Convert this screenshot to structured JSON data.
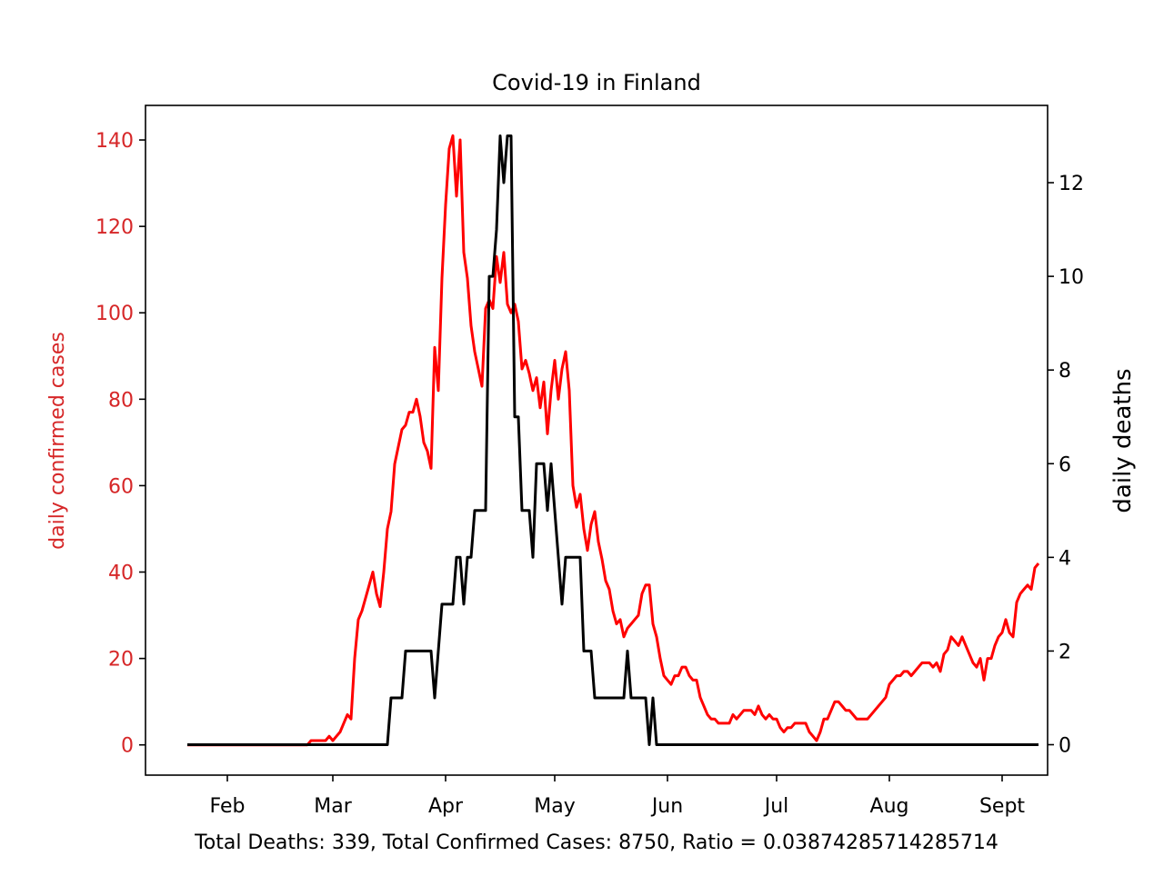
{
  "chart_data": {
    "type": "line",
    "title": "Covid-19 in Finland",
    "xlabel": "Total Deaths: 339,  Total Confirmed Cases: 8750,   Ratio = 0.03874285714285714",
    "ylabel_left": "daily confirmed cases",
    "ylabel_right": "daily deaths",
    "colors": {
      "cases": "#ff0000",
      "deaths": "#000000",
      "left_axis_text": "#d62728"
    },
    "grid": false,
    "x_day_range": [
      -12.5,
      235.5
    ],
    "ylim_left": [
      -7,
      148
    ],
    "ylim_right": [
      -0.65,
      13.65
    ],
    "x_ticks": [
      {
        "day": 10,
        "label": "Feb"
      },
      {
        "day": 39,
        "label": "Mar"
      },
      {
        "day": 70,
        "label": "Apr"
      },
      {
        "day": 100,
        "label": "May"
      },
      {
        "day": 131,
        "label": "Jun"
      },
      {
        "day": 161,
        "label": "Jul"
      },
      {
        "day": 192,
        "label": "Aug"
      },
      {
        "day": 223,
        "label": "Sept"
      }
    ],
    "y_ticks_left": [
      0,
      20,
      40,
      60,
      80,
      100,
      120,
      140
    ],
    "y_ticks_right": [
      0,
      2,
      4,
      6,
      8,
      10,
      12
    ],
    "series": [
      {
        "key": "cases",
        "axis": "left",
        "points": [
          [
            -1,
            0
          ],
          [
            32,
            0
          ],
          [
            33,
            1
          ],
          [
            37,
            1
          ],
          [
            38,
            2
          ],
          [
            39,
            1
          ],
          [
            40,
            2
          ],
          [
            41,
            3
          ],
          [
            42,
            5
          ],
          [
            43,
            7
          ],
          [
            44,
            6
          ],
          [
            45,
            20
          ],
          [
            46,
            29
          ],
          [
            47,
            31
          ],
          [
            48,
            34
          ],
          [
            49,
            37
          ],
          [
            50,
            40
          ],
          [
            51,
            35
          ],
          [
            52,
            32
          ],
          [
            53,
            40
          ],
          [
            54,
            50
          ],
          [
            55,
            54
          ],
          [
            56,
            65
          ],
          [
            57,
            69
          ],
          [
            58,
            73
          ],
          [
            59,
            74
          ],
          [
            60,
            77
          ],
          [
            61,
            77
          ],
          [
            62,
            80
          ],
          [
            63,
            76
          ],
          [
            64,
            70
          ],
          [
            65,
            68
          ],
          [
            66,
            64
          ],
          [
            67,
            92
          ],
          [
            68,
            82
          ],
          [
            69,
            108
          ],
          [
            70,
            125
          ],
          [
            71,
            138
          ],
          [
            72,
            141
          ],
          [
            73,
            127
          ],
          [
            74,
            140
          ],
          [
            75,
            114
          ],
          [
            76,
            108
          ],
          [
            77,
            97
          ],
          [
            78,
            91
          ],
          [
            79,
            87
          ],
          [
            80,
            83
          ],
          [
            81,
            101
          ],
          [
            82,
            103
          ],
          [
            83,
            101
          ],
          [
            84,
            113
          ],
          [
            85,
            107
          ],
          [
            86,
            114
          ],
          [
            87,
            102
          ],
          [
            88,
            100
          ],
          [
            89,
            102
          ],
          [
            90,
            98
          ],
          [
            91,
            87
          ],
          [
            92,
            89
          ],
          [
            93,
            86
          ],
          [
            94,
            82
          ],
          [
            95,
            85
          ],
          [
            96,
            78
          ],
          [
            97,
            84
          ],
          [
            98,
            72
          ],
          [
            99,
            82
          ],
          [
            100,
            89
          ],
          [
            101,
            80
          ],
          [
            102,
            87
          ],
          [
            103,
            91
          ],
          [
            104,
            82
          ],
          [
            105,
            60
          ],
          [
            106,
            55
          ],
          [
            107,
            58
          ],
          [
            108,
            50
          ],
          [
            109,
            45
          ],
          [
            110,
            51
          ],
          [
            111,
            54
          ],
          [
            112,
            47
          ],
          [
            113,
            43
          ],
          [
            114,
            38
          ],
          [
            115,
            36
          ],
          [
            116,
            31
          ],
          [
            117,
            28
          ],
          [
            118,
            29
          ],
          [
            119,
            25
          ],
          [
            120,
            27
          ],
          [
            121,
            28
          ],
          [
            122,
            29
          ],
          [
            123,
            30
          ],
          [
            124,
            35
          ],
          [
            125,
            37
          ],
          [
            126,
            37
          ],
          [
            127,
            28
          ],
          [
            128,
            25
          ],
          [
            129,
            20
          ],
          [
            130,
            16
          ],
          [
            131,
            15
          ],
          [
            132,
            14
          ],
          [
            133,
            16
          ],
          [
            134,
            16
          ],
          [
            135,
            18
          ],
          [
            136,
            18
          ],
          [
            137,
            16
          ],
          [
            138,
            15
          ],
          [
            139,
            15
          ],
          [
            140,
            11
          ],
          [
            141,
            9
          ],
          [
            142,
            7
          ],
          [
            143,
            6
          ],
          [
            144,
            6
          ],
          [
            145,
            5
          ],
          [
            146,
            5
          ],
          [
            147,
            5
          ],
          [
            148,
            5
          ],
          [
            149,
            7
          ],
          [
            150,
            6
          ],
          [
            151,
            7
          ],
          [
            152,
            8
          ],
          [
            153,
            8
          ],
          [
            154,
            8
          ],
          [
            155,
            7
          ],
          [
            156,
            9
          ],
          [
            157,
            7
          ],
          [
            158,
            6
          ],
          [
            159,
            7
          ],
          [
            160,
            6
          ],
          [
            161,
            6
          ],
          [
            162,
            4
          ],
          [
            163,
            3
          ],
          [
            164,
            4
          ],
          [
            165,
            4
          ],
          [
            166,
            5
          ],
          [
            167,
            5
          ],
          [
            168,
            5
          ],
          [
            169,
            5
          ],
          [
            170,
            3
          ],
          [
            171,
            2
          ],
          [
            172,
            1
          ],
          [
            173,
            3
          ],
          [
            174,
            6
          ],
          [
            175,
            6
          ],
          [
            176,
            8
          ],
          [
            177,
            10
          ],
          [
            178,
            10
          ],
          [
            179,
            9
          ],
          [
            180,
            8
          ],
          [
            181,
            8
          ],
          [
            182,
            7
          ],
          [
            183,
            6
          ],
          [
            184,
            6
          ],
          [
            185,
            6
          ],
          [
            186,
            6
          ],
          [
            187,
            7
          ],
          [
            188,
            8
          ],
          [
            189,
            9
          ],
          [
            190,
            10
          ],
          [
            191,
            11
          ],
          [
            192,
            14
          ],
          [
            193,
            15
          ],
          [
            194,
            16
          ],
          [
            195,
            16
          ],
          [
            196,
            17
          ],
          [
            197,
            17
          ],
          [
            198,
            16
          ],
          [
            199,
            17
          ],
          [
            200,
            18
          ],
          [
            201,
            19
          ],
          [
            202,
            19
          ],
          [
            203,
            19
          ],
          [
            204,
            18
          ],
          [
            205,
            19
          ],
          [
            206,
            17
          ],
          [
            207,
            21
          ],
          [
            208,
            22
          ],
          [
            209,
            25
          ],
          [
            210,
            24
          ],
          [
            211,
            23
          ],
          [
            212,
            25
          ],
          [
            213,
            23
          ],
          [
            214,
            21
          ],
          [
            215,
            19
          ],
          [
            216,
            18
          ],
          [
            217,
            20
          ],
          [
            218,
            15
          ],
          [
            219,
            20
          ],
          [
            220,
            20
          ],
          [
            221,
            23
          ],
          [
            222,
            25
          ],
          [
            223,
            26
          ],
          [
            224,
            29
          ],
          [
            225,
            26
          ],
          [
            226,
            25
          ],
          [
            227,
            33
          ],
          [
            228,
            35
          ],
          [
            229,
            36
          ],
          [
            230,
            37
          ],
          [
            231,
            36
          ],
          [
            232,
            41
          ],
          [
            233,
            42
          ]
        ]
      },
      {
        "key": "deaths",
        "axis": "right",
        "points": [
          [
            -1,
            0
          ],
          [
            54,
            0
          ],
          [
            55,
            1
          ],
          [
            58,
            1
          ],
          [
            59,
            2
          ],
          [
            64,
            2
          ],
          [
            65,
            2
          ],
          [
            66,
            2
          ],
          [
            67,
            1
          ],
          [
            68,
            2
          ],
          [
            69,
            3
          ],
          [
            72,
            3
          ],
          [
            73,
            4
          ],
          [
            74,
            4
          ],
          [
            75,
            3
          ],
          [
            76,
            4
          ],
          [
            77,
            4
          ],
          [
            78,
            5
          ],
          [
            81,
            5
          ],
          [
            82,
            10
          ],
          [
            83,
            10
          ],
          [
            84,
            11
          ],
          [
            85,
            13
          ],
          [
            86,
            12
          ],
          [
            87,
            13
          ],
          [
            88,
            13
          ],
          [
            89,
            7
          ],
          [
            90,
            7
          ],
          [
            91,
            5
          ],
          [
            93,
            5
          ],
          [
            94,
            4
          ],
          [
            95,
            6
          ],
          [
            97,
            6
          ],
          [
            98,
            5
          ],
          [
            99,
            6
          ],
          [
            100,
            5
          ],
          [
            101,
            4
          ],
          [
            102,
            3
          ],
          [
            103,
            4
          ],
          [
            107,
            4
          ],
          [
            108,
            2
          ],
          [
            110,
            2
          ],
          [
            111,
            1
          ],
          [
            119,
            1
          ],
          [
            120,
            2
          ],
          [
            121,
            1
          ],
          [
            125,
            1
          ],
          [
            126,
            0
          ],
          [
            127,
            1
          ],
          [
            128,
            0
          ],
          [
            233,
            0
          ]
        ]
      }
    ]
  }
}
